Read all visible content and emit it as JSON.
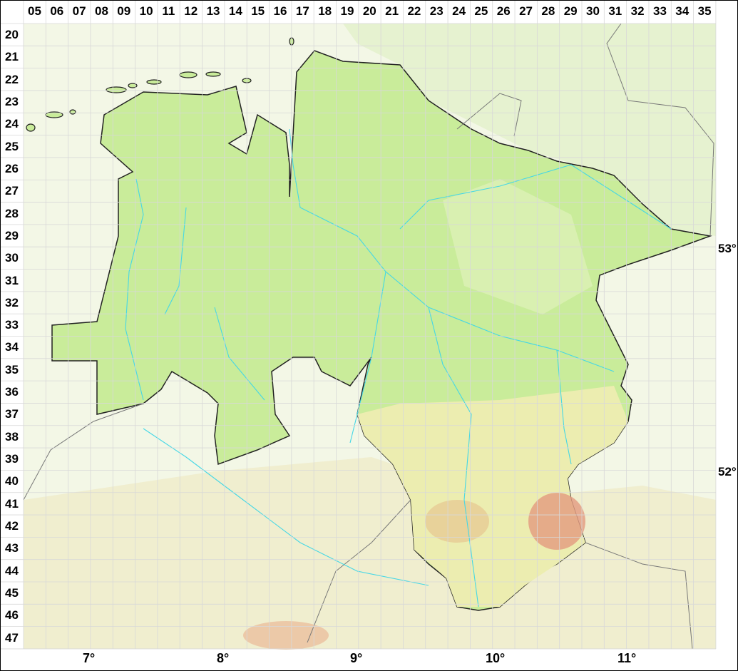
{
  "grid": {
    "columns": [
      "05",
      "06",
      "07",
      "08",
      "09",
      "10",
      "11",
      "12",
      "13",
      "14",
      "15",
      "16",
      "17",
      "18",
      "19",
      "20",
      "21",
      "22",
      "23",
      "24",
      "25",
      "26",
      "27",
      "28",
      "29",
      "30",
      "31",
      "32",
      "33",
      "34",
      "35"
    ],
    "rows": [
      "20",
      "21",
      "22",
      "23",
      "24",
      "25",
      "26",
      "27",
      "28",
      "29",
      "30",
      "31",
      "32",
      "33",
      "34",
      "35",
      "36",
      "37",
      "38",
      "39",
      "40",
      "41",
      "42",
      "43",
      "44",
      "45",
      "46",
      "47"
    ]
  },
  "longitude_labels": [
    "7°",
    "8°",
    "9°",
    "10°",
    "11°"
  ],
  "latitude_labels": [
    "53°",
    "52°"
  ],
  "colors": {
    "region_fill": "#c9ec9a",
    "lowland_outside": "#eef5dc",
    "hills": "#efe9c4",
    "mountains": "#e39a80",
    "rivers": "#45d7e6",
    "border": "#222222",
    "grid": "#d8d8d8"
  }
}
